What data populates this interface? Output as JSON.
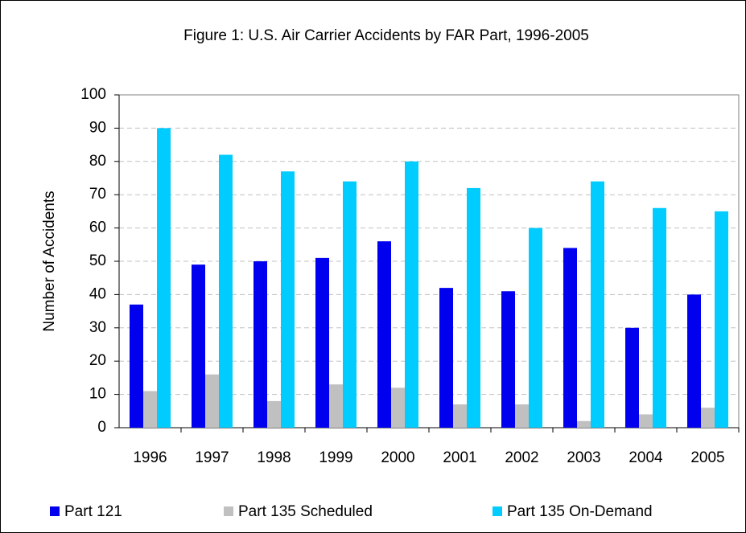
{
  "chart_data": {
    "type": "bar",
    "title": "Figure 1:  U.S. Air Carrier Accidents by FAR Part, 1996-2005",
    "y_label": "Number of Accidents",
    "categories": [
      "1996",
      "1997",
      "1998",
      "1999",
      "2000",
      "2001",
      "2002",
      "2003",
      "2004",
      "2005"
    ],
    "series": [
      {
        "name": "Part 121",
        "color": "#0000ee",
        "values": [
          37,
          49,
          50,
          51,
          56,
          42,
          41,
          54,
          30,
          40
        ]
      },
      {
        "name": "Part 135 Scheduled",
        "color": "#c0c0c0",
        "values": [
          11,
          16,
          8,
          13,
          12,
          7,
          7,
          2,
          4,
          6
        ]
      },
      {
        "name": "Part 135 On-Demand",
        "color": "#00ccff",
        "values": [
          90,
          82,
          77,
          74,
          80,
          72,
          60,
          74,
          66,
          65
        ]
      }
    ],
    "ylim": [
      0,
      100
    ],
    "yticks": [
      0,
      10,
      20,
      30,
      40,
      50,
      60,
      70,
      80,
      90,
      100
    ],
    "grid": true,
    "legend": "bottom"
  }
}
